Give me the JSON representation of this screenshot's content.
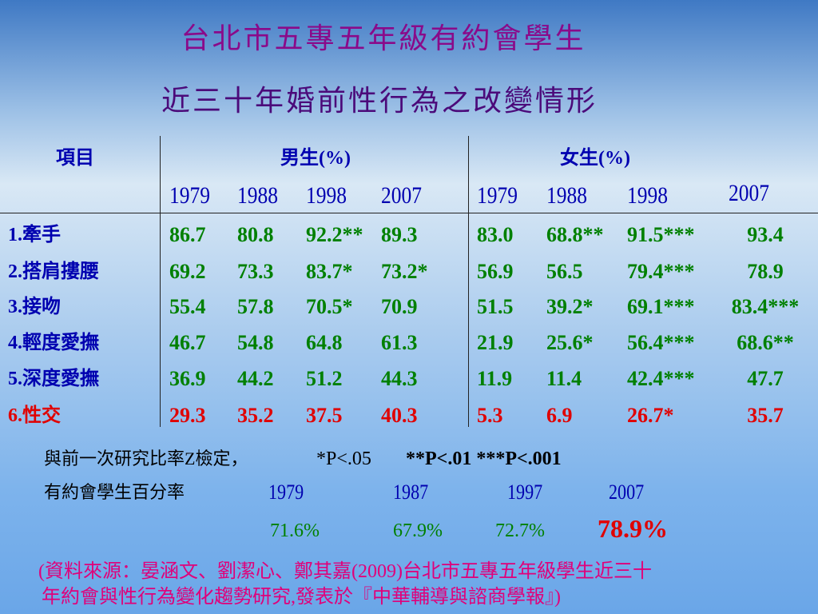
{
  "title": [
    "台北市五專五年級有約會學生",
    "近三十年婚前性行為之改變情形"
  ],
  "table": {
    "header": [
      "項目",
      "男生(%)",
      "女生(%)"
    ],
    "male_years": [
      "1979",
      "1988",
      "1998",
      "2007"
    ],
    "female_years": [
      "1979",
      "1988",
      "1998",
      "2007"
    ],
    "rows": [
      {
        "label": "1.牽手",
        "male": [
          "86.7",
          "80.8",
          "92.2**",
          "89.3"
        ],
        "female": [
          "83.0",
          "68.8**",
          "91.5***",
          "93.4"
        ]
      },
      {
        "label": "2.搭肩摟腰",
        "male": [
          "69.2",
          "73.3",
          "83.7*",
          "73.2*"
        ],
        "female": [
          "56.9",
          "56.5",
          "79.4***",
          "78.9"
        ]
      },
      {
        "label": "3.接吻",
        "male": [
          "55.4",
          "57.8",
          "70.5*",
          "70.9"
        ],
        "female": [
          "51.5",
          "39.2*",
          "69.1***",
          "83.4***"
        ]
      },
      {
        "label": "4.輕度愛撫",
        "male": [
          "46.7",
          "54.8",
          "64.8",
          "61.3"
        ],
        "female": [
          "21.9",
          "25.6*",
          "56.4***",
          "68.6**"
        ]
      },
      {
        "label": "5.深度愛撫",
        "male": [
          "36.9",
          "44.2",
          "51.2",
          "44.3"
        ],
        "female": [
          "11.9",
          "11.4",
          "42.4***",
          "47.7"
        ]
      },
      {
        "label": "6.性交",
        "male": [
          "29.3",
          "35.2",
          "37.5",
          "40.3"
        ],
        "female": [
          "5.3",
          "6.9",
          "26.7*",
          "35.7"
        ]
      }
    ]
  },
  "note": [
    "與前一次研究比率Z檢定，",
    "*P<.05",
    "**P<.01 ***P<.001"
  ],
  "dating": {
    "label": "有約會學生百分率",
    "years": [
      "1979",
      "1987",
      "1997",
      "2007"
    ],
    "values": [
      "71.6%",
      "67.9%",
      "72.7%",
      "78.9%"
    ]
  },
  "source": [
    "(資料來源：晏涵文、劉潔心、鄭其嘉(2009)台北市五專五年級學生近三十",
    "年約會與性行為變化趨勢研究,發表於『中華輔導與諮商學報』)"
  ]
}
